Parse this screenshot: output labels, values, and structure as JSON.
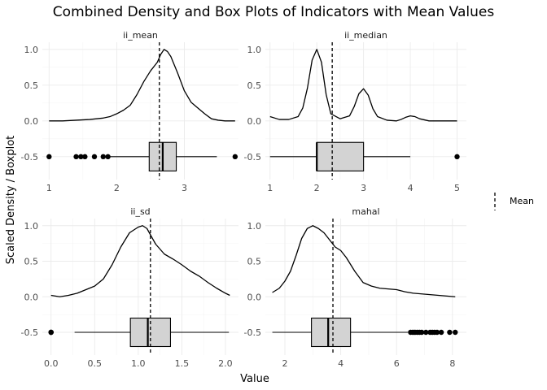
{
  "chart_data": {
    "type": "density-boxplot",
    "title": "Combined Density and Box Plots of Indicators with Mean Values",
    "xlabel": "Value",
    "ylabel": "Scaled Density / Boxplot",
    "legend": {
      "label": "Mean",
      "placement": "right"
    },
    "panels": [
      {
        "name": "ii_mean",
        "xlim": [
          0.9,
          3.8
        ],
        "xticks": [
          1,
          2,
          3
        ],
        "ylim": [
          -0.82,
          1.1
        ],
        "yticks": [
          -0.5,
          0.0,
          0.5,
          1.0
        ],
        "mean": 2.63,
        "density": {
          "x": [
            1.0,
            1.2,
            1.4,
            1.6,
            1.8,
            1.9,
            2.0,
            2.1,
            2.2,
            2.3,
            2.4,
            2.5,
            2.6,
            2.65,
            2.7,
            2.75,
            2.8,
            2.9,
            3.0,
            3.1,
            3.2,
            3.3,
            3.4,
            3.5,
            3.6,
            3.75
          ],
          "y": [
            0.0,
            0.0,
            0.01,
            0.02,
            0.04,
            0.06,
            0.1,
            0.15,
            0.22,
            0.37,
            0.55,
            0.7,
            0.82,
            0.93,
            1.0,
            0.97,
            0.9,
            0.67,
            0.42,
            0.26,
            0.18,
            0.1,
            0.03,
            0.01,
            0.0,
            0.0
          ]
        },
        "boxplot": {
          "y": -0.5,
          "min": 1.9,
          "q1": 2.48,
          "median": 2.68,
          "q3": 2.88,
          "max": 3.48,
          "outliers": [
            1.0,
            1.4,
            1.47,
            1.53,
            1.67,
            1.8,
            1.87,
            3.75
          ]
        }
      },
      {
        "name": "ii_median",
        "xlim": [
          0.9,
          5.2
        ],
        "xticks": [
          1,
          2,
          3,
          4,
          5
        ],
        "ylim": [
          -0.82,
          1.1
        ],
        "yticks": [
          -0.5,
          0.0,
          0.5,
          1.0
        ],
        "mean": 2.33,
        "density": {
          "x": [
            1.0,
            1.2,
            1.4,
            1.6,
            1.7,
            1.8,
            1.9,
            2.0,
            2.1,
            2.2,
            2.3,
            2.5,
            2.7,
            2.8,
            2.9,
            3.0,
            3.1,
            3.2,
            3.3,
            3.5,
            3.7,
            3.8,
            3.9,
            4.0,
            4.1,
            4.2,
            4.4,
            4.6,
            5.0
          ],
          "y": [
            0.06,
            0.02,
            0.02,
            0.06,
            0.18,
            0.46,
            0.85,
            1.0,
            0.82,
            0.37,
            0.1,
            0.03,
            0.07,
            0.2,
            0.38,
            0.45,
            0.36,
            0.17,
            0.06,
            0.01,
            0.0,
            0.02,
            0.05,
            0.07,
            0.06,
            0.03,
            0.0,
            0.0,
            0.0
          ]
        },
        "boxplot": {
          "y": -0.5,
          "min": 1.0,
          "q1": 2.0,
          "median": 2.0,
          "q3": 3.0,
          "max": 4.0,
          "outliers": [
            5.0
          ]
        }
      },
      {
        "name": "ii_sd",
        "xlim": [
          -0.1,
          2.15
        ],
        "xticks": [
          0.0,
          0.5,
          1.0,
          1.5,
          2.0
        ],
        "ylim": [
          -0.82,
          1.1
        ],
        "yticks": [
          -0.5,
          0.0,
          0.5,
          1.0
        ],
        "mean": 1.14,
        "density": {
          "x": [
            0.0,
            0.1,
            0.2,
            0.3,
            0.4,
            0.5,
            0.6,
            0.7,
            0.8,
            0.9,
            1.0,
            1.05,
            1.1,
            1.15,
            1.2,
            1.3,
            1.4,
            1.5,
            1.6,
            1.7,
            1.8,
            1.9,
            2.0,
            2.05
          ],
          "y": [
            0.02,
            0.0,
            0.02,
            0.05,
            0.1,
            0.15,
            0.25,
            0.45,
            0.7,
            0.9,
            0.98,
            1.0,
            0.96,
            0.85,
            0.74,
            0.6,
            0.53,
            0.45,
            0.36,
            0.29,
            0.2,
            0.12,
            0.05,
            0.02
          ]
        },
        "boxplot": {
          "y": -0.5,
          "min": 0.27,
          "q1": 0.91,
          "median": 1.11,
          "q3": 1.37,
          "max": 2.04,
          "outliers": [
            0.0,
            0.0,
            0.0
          ]
        }
      },
      {
        "name": "mahal",
        "xlim": [
          1.3,
          8.5
        ],
        "xticks": [
          2,
          4,
          6,
          8
        ],
        "ylim": [
          -0.82,
          1.1
        ],
        "yticks": [
          -0.5,
          0.0,
          0.5,
          1.0
        ],
        "mean": 3.72,
        "density": {
          "x": [
            1.55,
            1.8,
            2.0,
            2.2,
            2.4,
            2.6,
            2.8,
            3.0,
            3.2,
            3.4,
            3.6,
            3.8,
            4.0,
            4.2,
            4.5,
            4.8,
            5.1,
            5.4,
            5.7,
            6.0,
            6.3,
            6.6,
            6.9,
            7.2,
            7.5,
            7.8,
            8.1
          ],
          "y": [
            0.06,
            0.12,
            0.22,
            0.36,
            0.58,
            0.82,
            0.96,
            1.0,
            0.96,
            0.9,
            0.8,
            0.7,
            0.65,
            0.55,
            0.36,
            0.2,
            0.15,
            0.12,
            0.11,
            0.1,
            0.07,
            0.05,
            0.04,
            0.03,
            0.02,
            0.01,
            0.0
          ]
        },
        "boxplot": {
          "y": -0.5,
          "min": 1.55,
          "q1": 2.95,
          "median": 3.55,
          "q3": 4.35,
          "max": 6.4,
          "outliers": [
            6.5,
            6.58,
            6.66,
            6.74,
            6.82,
            6.9,
            7.05,
            7.2,
            7.28,
            7.36,
            7.45,
            7.6,
            7.9,
            8.1
          ]
        }
      }
    ]
  }
}
